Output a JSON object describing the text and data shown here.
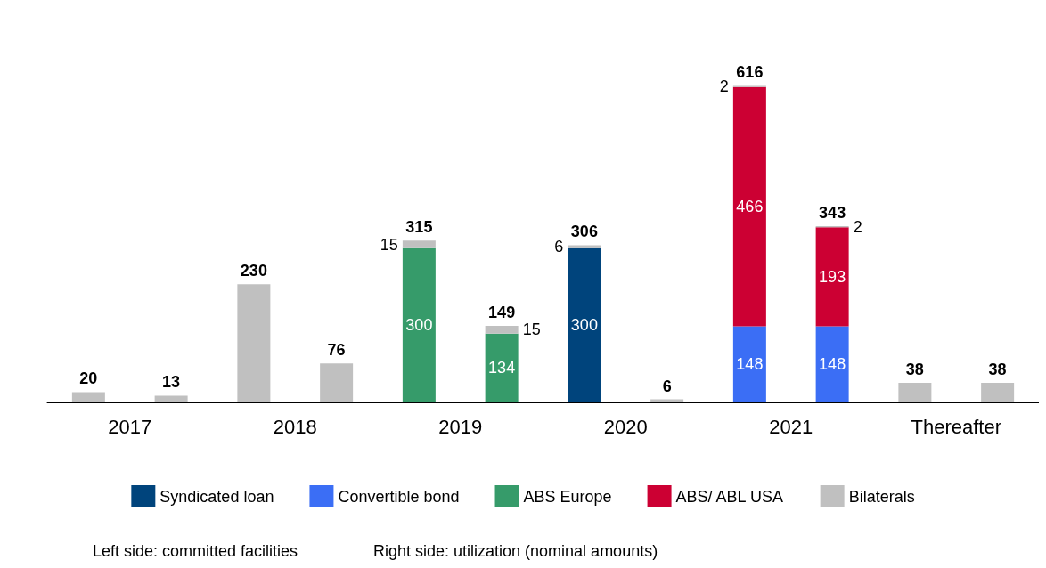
{
  "chart_data": {
    "type": "bar",
    "stacked": true,
    "legend": "bottom",
    "categories": [
      "2017",
      null,
      "2018",
      null,
      "2019",
      null,
      "2020",
      null,
      "2021",
      null,
      "Thereafter",
      null
    ],
    "series": [
      {
        "name": "Syndicated loan",
        "color": "#00447c",
        "values": [
          null,
          null,
          null,
          null,
          null,
          null,
          300,
          null,
          null,
          null,
          null,
          null
        ],
        "value_labels": [
          null,
          null,
          null,
          null,
          null,
          null,
          "300",
          null,
          null,
          null,
          null,
          null
        ]
      },
      {
        "name": "Convertible bond",
        "color": "#3b6ef5",
        "values": [
          null,
          null,
          null,
          null,
          null,
          null,
          null,
          null,
          148,
          148,
          null,
          null
        ],
        "value_labels": [
          null,
          null,
          null,
          null,
          null,
          null,
          null,
          null,
          "148",
          "148",
          null,
          null
        ]
      },
      {
        "name": "ABS Europe",
        "color": "#369b6a",
        "values": [
          null,
          null,
          null,
          null,
          300,
          134,
          null,
          null,
          null,
          null,
          null,
          null
        ],
        "value_labels": [
          null,
          null,
          null,
          null,
          "300",
          "134",
          null,
          null,
          null,
          null,
          null,
          null
        ]
      },
      {
        "name": "ABS/ ABL USA",
        "color": "#cc0033",
        "values": [
          null,
          null,
          null,
          null,
          null,
          null,
          null,
          null,
          466,
          193,
          null,
          null
        ],
        "value_labels": [
          null,
          null,
          null,
          null,
          null,
          null,
          null,
          null,
          "466",
          "193",
          null,
          null
        ]
      },
      {
        "name": "Bilaterals",
        "color": "#c0c0c0",
        "values": [
          20,
          13,
          230,
          76,
          15,
          15,
          6,
          6,
          2,
          2,
          38,
          38
        ],
        "value_labels": [
          null,
          null,
          null,
          null,
          "15",
          "15",
          "6",
          null,
          "2",
          "2",
          null,
          null
        ]
      }
    ],
    "totals": [
      "20",
      "13",
      "230",
      "76",
      "315",
      "149",
      "306",
      "6",
      "616",
      "343",
      "38",
      "38"
    ],
    "annotations": [
      "Left side: committed facilities",
      "Right side: utilization (nominal amounts)"
    ]
  }
}
